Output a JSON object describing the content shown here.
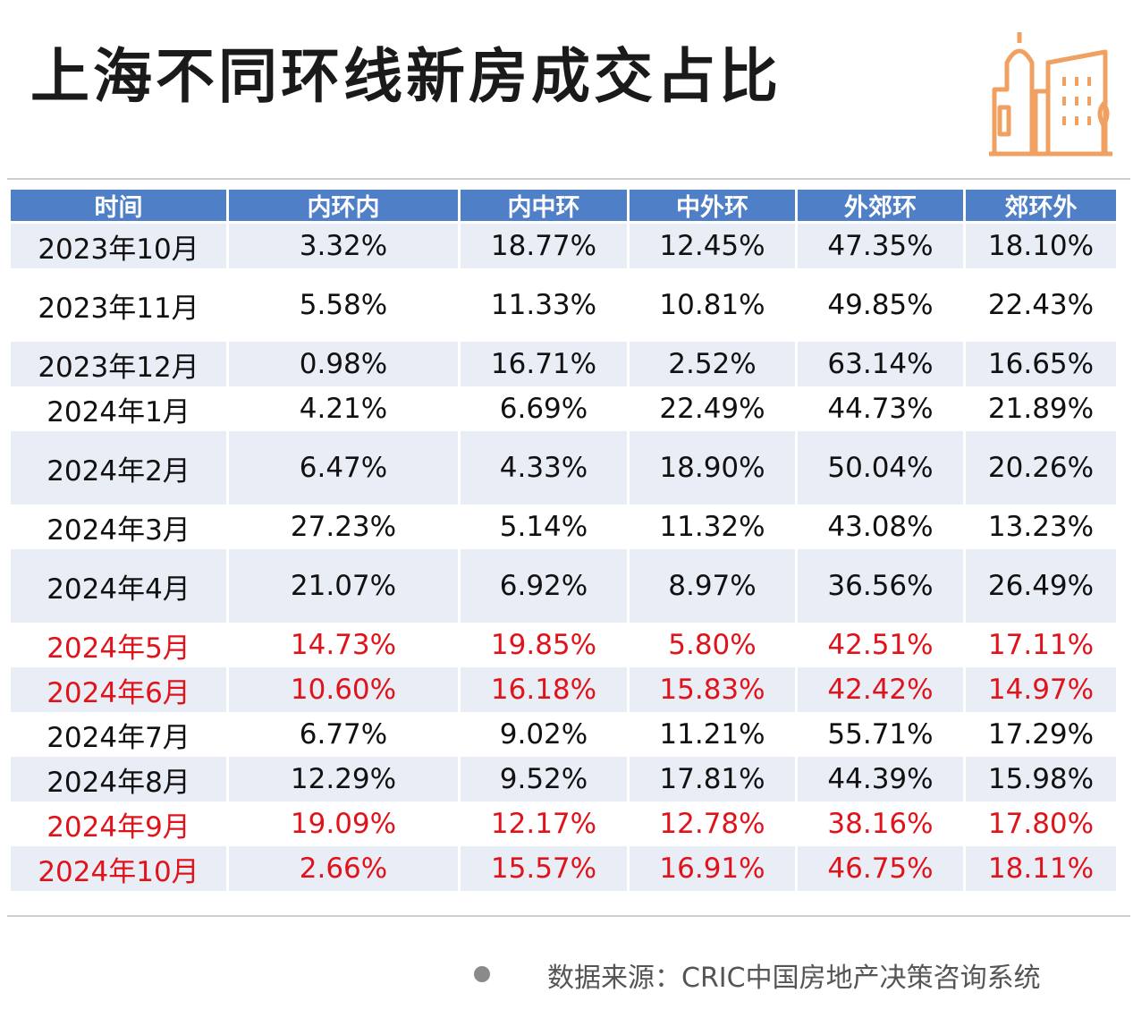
{
  "title": "上海不同环线新房成交占比",
  "icons": {
    "logo": "city-buildings-icon",
    "accent_color": "#f0a060"
  },
  "colors": {
    "header_bg": "#4f7fc7",
    "alt_row_bg": "#e9edf6",
    "highlight_text": "#e0131b"
  },
  "table": {
    "headers": [
      "时间",
      "内环内",
      "内中环",
      "中外环",
      "外郊环",
      "郊环外"
    ],
    "rows": [
      {
        "cells": [
          "2023年10月",
          "3.32%",
          "18.77%",
          "12.45%",
          "47.35%",
          "18.10%"
        ],
        "highlight": false
      },
      {
        "cells": [
          "2023年11月",
          "5.58%",
          "11.33%",
          "10.81%",
          "49.85%",
          "22.43%"
        ],
        "highlight": false
      },
      {
        "cells": [
          "2023年12月",
          "0.98%",
          "16.71%",
          "2.52%",
          "63.14%",
          "16.65%"
        ],
        "highlight": false
      },
      {
        "cells": [
          "2024年1月",
          "4.21%",
          "6.69%",
          "22.49%",
          "44.73%",
          "21.89%"
        ],
        "highlight": false
      },
      {
        "cells": [
          "2024年2月",
          "6.47%",
          "4.33%",
          "18.90%",
          "50.04%",
          "20.26%"
        ],
        "highlight": false
      },
      {
        "cells": [
          "2024年3月",
          "27.23%",
          "5.14%",
          "11.32%",
          "43.08%",
          "13.23%"
        ],
        "highlight": false
      },
      {
        "cells": [
          "2024年4月",
          "21.07%",
          "6.92%",
          "8.97%",
          "36.56%",
          "26.49%"
        ],
        "highlight": false
      },
      {
        "cells": [
          "2024年5月",
          "14.73%",
          "19.85%",
          "5.80%",
          "42.51%",
          "17.11%"
        ],
        "highlight": true
      },
      {
        "cells": [
          "2024年6月",
          "10.60%",
          "16.18%",
          "15.83%",
          "42.42%",
          "14.97%"
        ],
        "highlight": true
      },
      {
        "cells": [
          "2024年7月",
          "6.77%",
          "9.02%",
          "11.21%",
          "55.71%",
          "17.29%"
        ],
        "highlight": false
      },
      {
        "cells": [
          "2024年8月",
          "12.29%",
          "9.52%",
          "17.81%",
          "44.39%",
          "15.98%"
        ],
        "highlight": false
      },
      {
        "cells": [
          "2024年9月",
          "19.09%",
          "12.17%",
          "12.78%",
          "38.16%",
          "17.80%"
        ],
        "highlight": true
      },
      {
        "cells": [
          "2024年10月",
          "2.66%",
          "15.57%",
          "16.91%",
          "46.75%",
          "18.11%"
        ],
        "highlight": true
      }
    ]
  },
  "footer": {
    "source": "数据来源：CRIC中国房地产决策咨询系统"
  }
}
